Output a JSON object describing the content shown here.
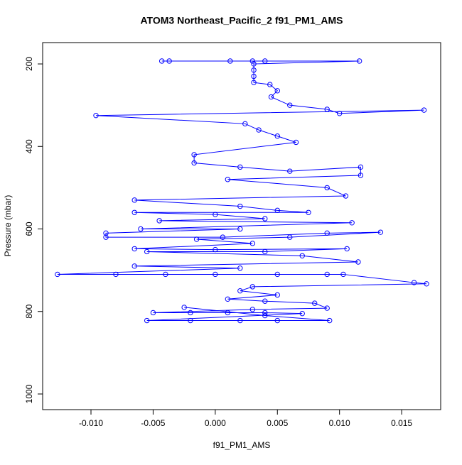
{
  "chart_data": {
    "type": "scatter-line",
    "title": "ATOM3 Northeast_Pacific_2 f91_PM1_AMS",
    "x_label": "f91_PM1_AMS",
    "y_label": "Pressure (mbar)",
    "color": "#0000ff",
    "xlim": [
      -0.01389,
      0.01814
    ],
    "ylim": [
      1037.9,
      148.3
    ],
    "xticks": [
      {
        "value": -0.01,
        "label": "-0.010"
      },
      {
        "value": -0.005,
        "label": "-0.005"
      },
      {
        "value": 0,
        "label": "0.000"
      },
      {
        "value": 0.005,
        "label": "0.005"
      },
      {
        "value": 0.01,
        "label": "0.010"
      },
      {
        "value": 0.015,
        "label": "0.015"
      }
    ],
    "yticks": [
      200,
      400,
      600,
      800,
      1000
    ],
    "x": [
      -0.0043,
      -0.0037,
      0.0012,
      0.003,
      0.004,
      0.0116,
      0.0031,
      0.0031,
      0.0031,
      0.0031,
      0.0044,
      0.005,
      0.0045,
      0.006,
      0.009,
      0.01,
      0.0168,
      -0.0096,
      0.0024,
      0.0035,
      0.005,
      0.0065,
      -0.0017,
      -0.0017,
      0.002,
      0.006,
      0.0117,
      0.0117,
      0.001,
      0.009,
      0.0105,
      -0.0065,
      0.002,
      0.005,
      0.0075,
      -0.0065,
      0.0,
      0.004,
      -0.0045,
      0.011,
      -0.006,
      0.002,
      -0.0088,
      -0.0088,
      0.0006,
      0.009,
      0.0133,
      0.006,
      -0.0015,
      0.003,
      -0.0065,
      0.0,
      0.0106,
      0.004,
      -0.0055,
      0.007,
      0.0115,
      -0.0065,
      0.002,
      -0.0127,
      -0.008,
      -0.004,
      0.0,
      0.005,
      0.009,
      0.0103,
      0.016,
      0.017,
      0.003,
      0.002,
      0.005,
      0.001,
      0.004,
      0.008,
      0.009,
      0.003,
      -0.005,
      -0.002,
      0.001,
      0.004,
      0.007,
      -0.0055,
      -0.002,
      0.002,
      0.005,
      0.0092,
      0.004,
      -0.0025
    ],
    "values": [
      193,
      193,
      193,
      193,
      193,
      193,
      200,
      215,
      230,
      245,
      250,
      265,
      280,
      300,
      310,
      320,
      312,
      325,
      345,
      360,
      375,
      390,
      420,
      440,
      450,
      460,
      450,
      470,
      480,
      500,
      520,
      530,
      545,
      555,
      560,
      560,
      565,
      575,
      580,
      585,
      600,
      600,
      610,
      620,
      620,
      610,
      608,
      620,
      625,
      635,
      648,
      650,
      648,
      655,
      655,
      665,
      680,
      690,
      695,
      710,
      710,
      710,
      710,
      710,
      710,
      710,
      730,
      733,
      740,
      750,
      760,
      770,
      775,
      780,
      792,
      795,
      803,
      803,
      803,
      803,
      805,
      822,
      822,
      822,
      822,
      822,
      810,
      790
    ]
  }
}
